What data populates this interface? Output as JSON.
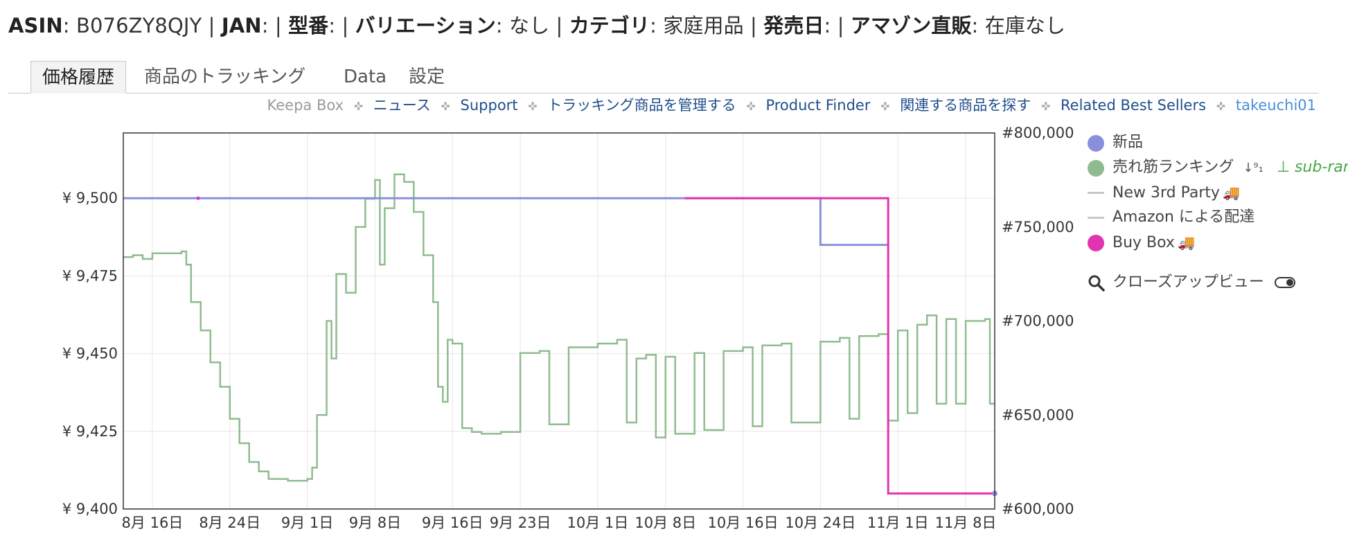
{
  "product_info": {
    "asin_label": "ASIN",
    "asin_value": ": B076ZY8QJY | ",
    "jan_label": "JAN",
    "jan_value": ": | ",
    "model_label": "型番",
    "model_value": ": | ",
    "variation_label": "バリエーション",
    "variation_value": ": なし | ",
    "category_label": "カテゴリ",
    "category_value": ": 家庭用品 | ",
    "release_label": "発売日",
    "release_value": ": | ",
    "amazon_label": "アマゾン直販",
    "amazon_value": ": 在庫なし"
  },
  "tabs": [
    "価格履歴",
    "商品のトラッキング",
    "Data",
    "設定"
  ],
  "subnav": {
    "keepa_box": "Keepa Box",
    "links": [
      "ニュース",
      "Support",
      "トラッキング商品を管理する",
      "Product Finder",
      "関連する商品を探す",
      "Related Best Sellers"
    ],
    "user": "takeuchi01",
    "separator": "✜"
  },
  "legend": {
    "new": "新品",
    "rank": "売れ筋ランキング",
    "sort_icon": "↓⁹₁",
    "sub_rank": "sub-ranks",
    "third_party": "New 3rd Party",
    "amazon_fba": "Amazon による配達",
    "buy_box": "Buy Box",
    "truck_icon": "🚚",
    "closeup": "クローズアップビュー"
  },
  "colors": {
    "new": "#8a8fdc",
    "rank": "#8fbc8f",
    "buy_box": "#e233b0",
    "grid": "#e6e6e6",
    "dash": "#c8c8c8"
  },
  "chart_data": {
    "type": "line",
    "x_tick_labels": [
      "8月 16日",
      "8月 24日",
      "9月 1日",
      "9月 8日",
      "9月 16日",
      "9月 23日",
      "10月 1日",
      "10月 8日",
      "10月 16日",
      "10月 24日",
      "11月 1日",
      "11月 8日"
    ],
    "x_tick_dates": [
      "2017-08-16",
      "2017-08-24",
      "2017-09-01",
      "2017-09-08",
      "2017-09-16",
      "2017-09-23",
      "2017-10-01",
      "2017-10-08",
      "2017-10-16",
      "2017-10-24",
      "2017-11-01",
      "2017-11-08"
    ],
    "xlim": [
      "2017-08-13",
      "2017-11-11"
    ],
    "y_left_tick_labels": [
      "¥ 9,400",
      "¥ 9,425",
      "¥ 9,450",
      "¥ 9,475",
      "¥ 9,500"
    ],
    "y_left_ticks": [
      9400,
      9425,
      9450,
      9475,
      9500
    ],
    "y_left_lim": [
      9400,
      9521
    ],
    "y_right_tick_labels": [
      "#600,000",
      "#650,000",
      "#700,000",
      "#750,000",
      "#800,000"
    ],
    "y_right_ticks": [
      600000,
      650000,
      700000,
      750000,
      800000
    ],
    "y_right_lim": [
      600000,
      800000
    ],
    "grid": true,
    "series": [
      {
        "name": "新品",
        "axis": "left",
        "points": [
          [
            "2017-08-13",
            9500
          ],
          [
            "2017-10-24",
            9500
          ],
          [
            "2017-10-24",
            9485
          ],
          [
            "2017-10-31",
            9485
          ]
        ]
      },
      {
        "name": "Buy Box",
        "axis": "left",
        "points": [
          [
            "2017-10-10",
            9500
          ],
          [
            "2017-10-31",
            9500
          ],
          [
            "2017-10-31",
            9405
          ],
          [
            "2017-11-11",
            9405
          ]
        ]
      },
      {
        "name": "売れ筋ランキング",
        "axis": "right",
        "points": [
          [
            "2017-08-13",
            734000
          ],
          [
            "2017-08-14",
            735000
          ],
          [
            "2017-08-15",
            733000
          ],
          [
            "2017-08-16",
            736000
          ],
          [
            "2017-08-19",
            737000
          ],
          [
            "2017-08-19.5",
            730000
          ],
          [
            "2017-08-20",
            710000
          ],
          [
            "2017-08-21",
            695000
          ],
          [
            "2017-08-22",
            678000
          ],
          [
            "2017-08-23",
            665000
          ],
          [
            "2017-08-24",
            648000
          ],
          [
            "2017-08-25",
            635000
          ],
          [
            "2017-08-26",
            625000
          ],
          [
            "2017-08-27",
            620000
          ],
          [
            "2017-08-28",
            616000
          ],
          [
            "2017-08-30",
            615000
          ],
          [
            "2017-09-01",
            616000
          ],
          [
            "2017-09-01.5",
            622000
          ],
          [
            "2017-09-02",
            650000
          ],
          [
            "2017-09-03",
            700000
          ],
          [
            "2017-09-03.5",
            680000
          ],
          [
            "2017-09-04",
            725000
          ],
          [
            "2017-09-05",
            715000
          ],
          [
            "2017-09-06",
            750000
          ],
          [
            "2017-09-07",
            765000
          ],
          [
            "2017-09-08",
            775000
          ],
          [
            "2017-09-08.5",
            730000
          ],
          [
            "2017-09-09",
            760000
          ],
          [
            "2017-09-10",
            778000
          ],
          [
            "2017-09-11",
            774000
          ],
          [
            "2017-09-12",
            758000
          ],
          [
            "2017-09-13",
            735000
          ],
          [
            "2017-09-14",
            710000
          ],
          [
            "2017-09-14.5",
            665000
          ],
          [
            "2017-09-15",
            657000
          ],
          [
            "2017-09-15.5",
            690000
          ],
          [
            "2017-09-16",
            688000
          ],
          [
            "2017-09-17",
            643000
          ],
          [
            "2017-09-18",
            641000
          ],
          [
            "2017-09-19",
            640000
          ],
          [
            "2017-09-21",
            641000
          ],
          [
            "2017-09-23",
            683000
          ],
          [
            "2017-09-25",
            684000
          ],
          [
            "2017-09-26",
            645000
          ],
          [
            "2017-09-28",
            686000
          ],
          [
            "2017-10-01",
            688000
          ],
          [
            "2017-10-03",
            690000
          ],
          [
            "2017-10-04",
            646000
          ],
          [
            "2017-10-05",
            680000
          ],
          [
            "2017-10-06",
            682000
          ],
          [
            "2017-10-07",
            638000
          ],
          [
            "2017-10-08",
            681000
          ],
          [
            "2017-10-09",
            640000
          ],
          [
            "2017-10-11",
            683000
          ],
          [
            "2017-10-12",
            642000
          ],
          [
            "2017-10-14",
            684000
          ],
          [
            "2017-10-16",
            686000
          ],
          [
            "2017-10-17",
            644000
          ],
          [
            "2017-10-18",
            687000
          ],
          [
            "2017-10-20",
            688000
          ],
          [
            "2017-10-21",
            646000
          ],
          [
            "2017-10-24",
            689000
          ],
          [
            "2017-10-26",
            691000
          ],
          [
            "2017-10-27",
            648000
          ],
          [
            "2017-10-28",
            692000
          ],
          [
            "2017-10-30",
            693000
          ],
          [
            "2017-10-31",
            647000
          ],
          [
            "2017-11-01",
            695000
          ],
          [
            "2017-11-02",
            651000
          ],
          [
            "2017-11-03",
            698000
          ],
          [
            "2017-11-04",
            703000
          ],
          [
            "2017-11-05",
            656000
          ],
          [
            "2017-11-06",
            701000
          ],
          [
            "2017-11-07",
            656000
          ],
          [
            "2017-11-08",
            700000
          ],
          [
            "2017-11-10",
            701000
          ],
          [
            "2017-11-10.5",
            656000
          ],
          [
            "2017-11-11",
            656000
          ]
        ]
      }
    ]
  }
}
